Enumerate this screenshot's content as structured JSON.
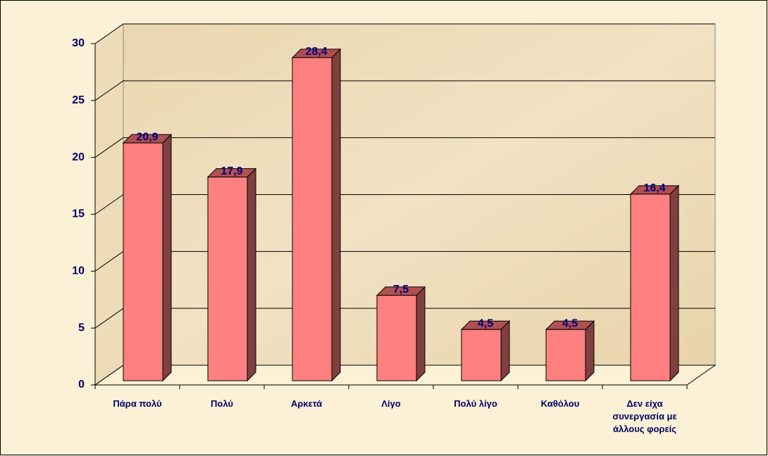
{
  "chart_data": {
    "type": "bar3d",
    "categories": [
      "Πάρα πολύ",
      "Πολύ",
      "Αρκετά",
      "Λίγο",
      "Πολύ λίγο",
      "Καθόλου",
      "Δεν είχα συνεργασία με άλλους φορείς"
    ],
    "values": [
      20.9,
      17.9,
      28.4,
      7.5,
      4.5,
      4.5,
      16.4
    ],
    "value_labels": [
      "20,9",
      "17,9",
      "28,4",
      "7,5",
      "4,5",
      "4,5",
      "16,4"
    ],
    "color": "#ff8080",
    "ylim": [
      0,
      30
    ],
    "yticks": [
      0,
      5,
      10,
      15,
      20,
      25,
      30
    ],
    "grid": true
  }
}
